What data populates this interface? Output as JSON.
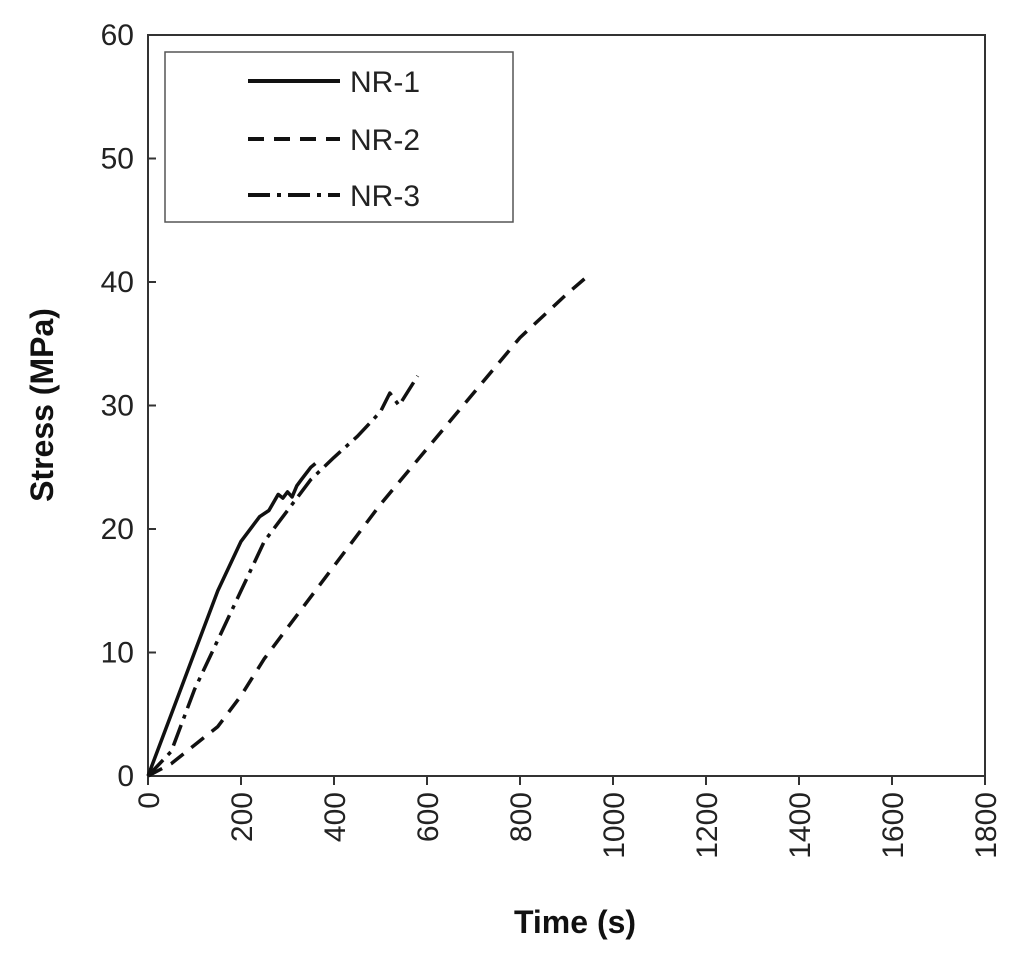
{
  "chart_data": {
    "type": "line",
    "title": "",
    "xlabel": "Time (s)",
    "ylabel": "Stress (MPa)",
    "xlim": [
      0,
      1800
    ],
    "ylim": [
      0,
      60
    ],
    "xticks": [
      "0",
      "200",
      "400",
      "600",
      "800",
      "1000",
      "1200",
      "1400",
      "1600",
      "1800"
    ],
    "yticks": [
      "0",
      "10",
      "20",
      "30",
      "40",
      "50",
      "60"
    ],
    "grid": false,
    "legend_position": "top-left",
    "series": [
      {
        "name": "NR-1",
        "style": "solid",
        "x": [
          0,
          50,
          100,
          150,
          200,
          240,
          260,
          280,
          290,
          300,
          310,
          320,
          330,
          340,
          350,
          360
        ],
        "y": [
          0,
          5,
          10,
          15,
          19,
          21,
          21.5,
          22.8,
          22.5,
          23,
          22.6,
          23.5,
          24,
          24.5,
          25,
          25.3
        ]
      },
      {
        "name": "NR-2",
        "style": "dashed",
        "x": [
          0,
          50,
          100,
          150,
          200,
          250,
          300,
          400,
          500,
          600,
          700,
          800,
          900,
          940
        ],
        "y": [
          0,
          1,
          2.5,
          4,
          6.5,
          9.5,
          12,
          17,
          22,
          26.5,
          31,
          35.5,
          39,
          40.3
        ]
      },
      {
        "name": "NR-3",
        "style": "dash-dot",
        "x": [
          0,
          50,
          100,
          150,
          200,
          250,
          300,
          350,
          400,
          450,
          500,
          520,
          540,
          580
        ],
        "y": [
          0,
          2,
          7,
          11,
          15,
          19,
          21.5,
          24,
          25.8,
          27.5,
          29.5,
          31,
          30,
          32.4
        ]
      }
    ]
  }
}
